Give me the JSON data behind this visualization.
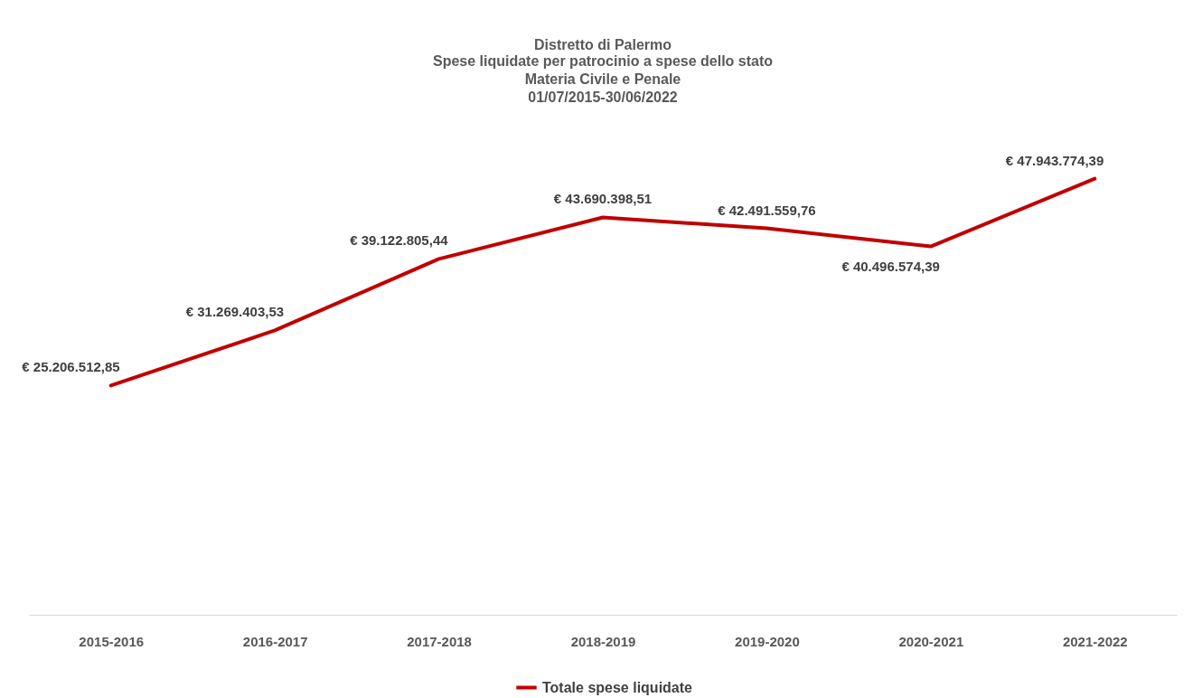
{
  "chart_data": {
    "type": "line",
    "title": "Distretto di Palermo",
    "subtitle": "Spese liquidate per patrocinio a spese dello stato\nMateria Civile e Penale\n01/07/2015-30/06/2022",
    "categories": [
      "2015-2016",
      "2016-2017",
      "2017-2018",
      "2018-2019",
      "2019-2020",
      "2020-2021",
      "2021-2022"
    ],
    "series": [
      {
        "name": "Totale spese liquidate",
        "color": "#c00000",
        "values": [
          25206512.85,
          31269403.53,
          39122805.44,
          43690398.51,
          42491559.76,
          40496574.39,
          47943774.39
        ],
        "value_labels": [
          "€ 25.206.512,85",
          "€ 31.269.403,53",
          "€ 39.122.805,44",
          "€ 43.690.398,51",
          "€ 42.491.559,76",
          "€ 40.496.574,39",
          "€ 47.943.774,39"
        ]
      }
    ],
    "legend": "bottom"
  }
}
